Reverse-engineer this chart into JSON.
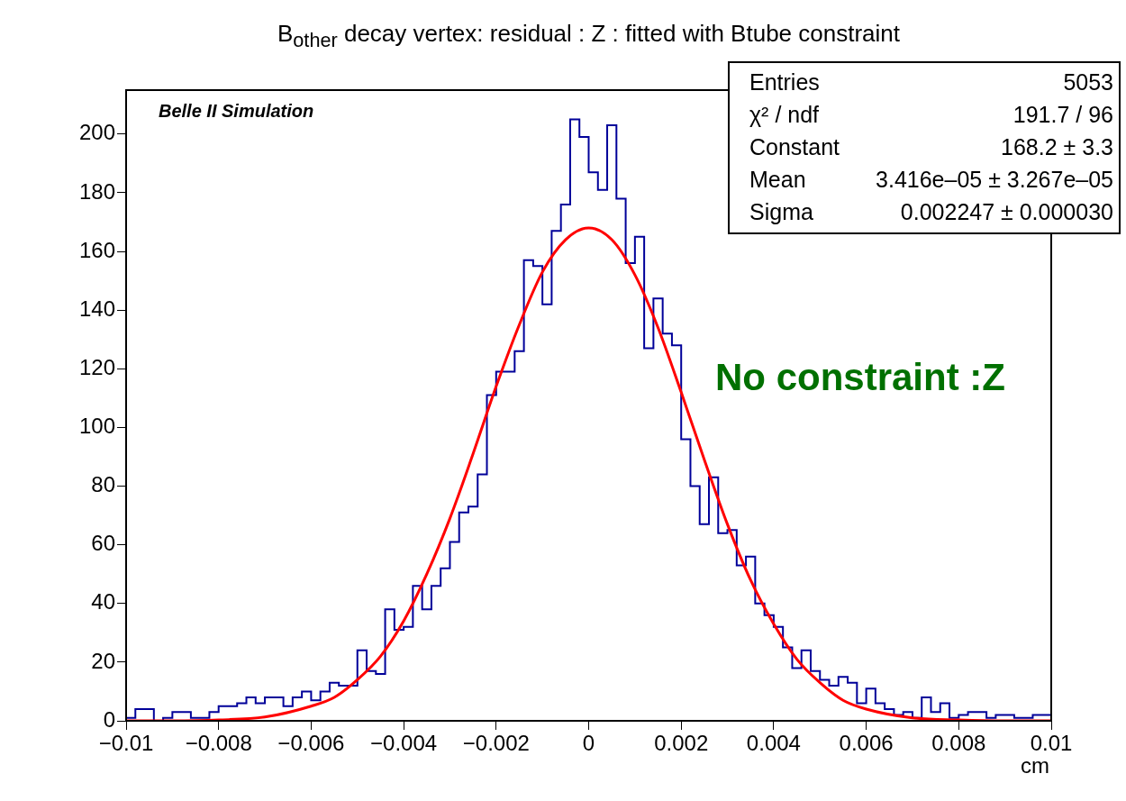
{
  "chart_data": {
    "type": "histogram",
    "title": "B$_{other}$ decay vertex: residual : Z : fitted with Btube constraint",
    "xlabel": "cm",
    "bins": [
      -0.01,
      -0.0098,
      -0.0096,
      -0.0094,
      -0.0092,
      -0.009,
      -0.0088,
      -0.0086,
      -0.0084,
      -0.0082,
      -0.008,
      -0.0078,
      -0.0076,
      -0.0074,
      -0.0072,
      -0.007,
      -0.0068,
      -0.0066,
      -0.0064,
      -0.0062,
      -0.006,
      -0.0058,
      -0.0056,
      -0.0054,
      -0.0052,
      -0.005,
      -0.0048,
      -0.0046,
      -0.0044,
      -0.0042,
      -0.004,
      -0.0038,
      -0.0036,
      -0.0034,
      -0.0032,
      -0.003,
      -0.0028,
      -0.0026,
      -0.0024,
      -0.0022,
      -0.002,
      -0.0018,
      -0.0016,
      -0.0014,
      -0.0012,
      -0.001,
      -0.0008,
      -0.0006,
      -0.0004,
      -0.0002,
      0,
      0.0002,
      0.0004,
      0.0006,
      0.0008,
      0.001,
      0.0012,
      0.0014,
      0.0016,
      0.0018,
      0.002,
      0.0022,
      0.0024,
      0.0026,
      0.0028,
      0.003,
      0.0032,
      0.0034,
      0.0036,
      0.0038,
      0.004,
      0.0042,
      0.0044,
      0.0046,
      0.0048,
      0.005,
      0.0052,
      0.0054,
      0.0056,
      0.0058,
      0.006,
      0.0062,
      0.0064,
      0.0066,
      0.0068,
      0.007,
      0.0072,
      0.0074,
      0.0076,
      0.0078,
      0.008,
      0.0082,
      0.0084,
      0.0086,
      0.0088,
      0.009,
      0.0092,
      0.0094,
      0.0096,
      0.0098,
      0.01
    ],
    "values": [
      1,
      4,
      4,
      0,
      1,
      3,
      3,
      1,
      1,
      3,
      5,
      5,
      6,
      8,
      6,
      8,
      8,
      5,
      8,
      10,
      7,
      10,
      13,
      12,
      12,
      24,
      17,
      16,
      38,
      31,
      32,
      46,
      38,
      46,
      52,
      61,
      71,
      73,
      84,
      111,
      119,
      119,
      126,
      157,
      155,
      142,
      167,
      176,
      205,
      199,
      187,
      181,
      203,
      178,
      156,
      165,
      127,
      144,
      132,
      128,
      96,
      80,
      67,
      83,
      64,
      65,
      53,
      56,
      40,
      36,
      32,
      25,
      18,
      24,
      17,
      14,
      12,
      15,
      13,
      6,
      11,
      6,
      4,
      2,
      3,
      1,
      8,
      3,
      6,
      1,
      2,
      3,
      3,
      1,
      2,
      2,
      1,
      1,
      2,
      2
    ],
    "color": "#000099",
    "series": [
      {
        "type": "line",
        "color": "#ff0000",
        "x": [
          -0.01,
          -0.009,
          -0.008,
          -0.007,
          -0.006,
          -0.0055,
          -0.005,
          -0.0045,
          -0.004,
          -0.0035,
          -0.003,
          -0.0025,
          -0.002,
          -0.0015,
          -0.001,
          -0.0005,
          0,
          0.0005,
          0.001,
          0.0015,
          0.002,
          0.0025,
          0.003,
          0.0035,
          0.004,
          0.0045,
          0.005,
          0.0055,
          0.006,
          0.007,
          0.008,
          0.009,
          0.01
        ],
        "values": [
          0,
          0,
          0.3,
          1.3,
          5,
          8,
          14,
          22,
          34,
          50,
          69,
          91,
          114,
          135,
          153,
          164,
          168,
          164,
          152,
          134,
          112,
          89,
          67,
          48,
          33,
          21,
          13,
          7,
          4,
          1,
          0.3,
          0,
          0
        ]
      }
    ],
    "xlim": [
      -0.01,
      0.01
    ],
    "xticks": [
      {
        "value": -0.01,
        "label": "−0.01"
      },
      {
        "value": -0.008,
        "label": "−0.008"
      },
      {
        "value": -0.006,
        "label": "−0.006"
      },
      {
        "value": -0.004,
        "label": "−0.004"
      },
      {
        "value": -0.002,
        "label": "−0.002"
      },
      0,
      0.002,
      0.004,
      0.006,
      0.008,
      0.01
    ],
    "ylim": [
      0,
      215
    ],
    "yticks": [
      0,
      20,
      40,
      60,
      80,
      100,
      120,
      140,
      160,
      180,
      200
    ],
    "annotations": [
      "Belle II Simulation",
      "No constraint :Z",
      "Entries  5053",
      "χ² / ndf  191.7 / 96",
      "Constant  168.2 ± 3.3",
      "Mean  3.416e–05 ± 3.267e–05",
      "Sigma  0.002247 ± 0.000030"
    ]
  }
}
